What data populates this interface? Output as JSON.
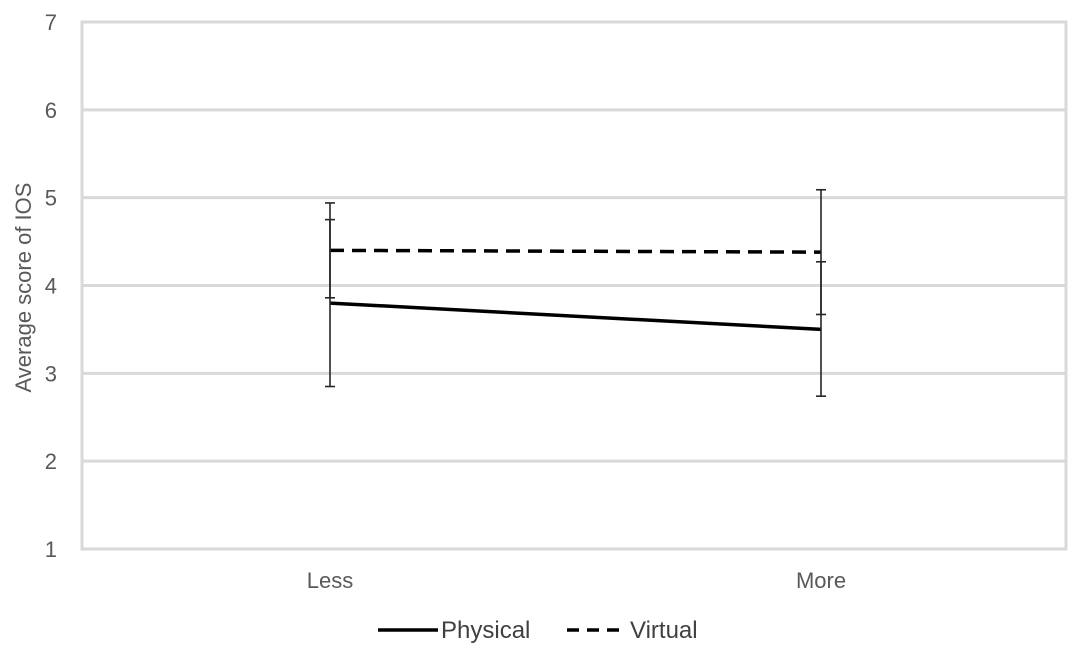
{
  "chart_data": {
    "type": "line",
    "title": "",
    "xlabel": "",
    "ylabel": "Average score of IOS",
    "ylim": [
      1,
      7
    ],
    "yticks": [
      1,
      2,
      3,
      4,
      5,
      6,
      7
    ],
    "categories": [
      "Less",
      "More"
    ],
    "grid": true,
    "legend_position": "bottom",
    "series": [
      {
        "name": "Physical",
        "style": "solid",
        "color": "#000000",
        "values": [
          3.8,
          3.5
        ],
        "error_low": [
          2.85,
          2.74
        ],
        "error_high": [
          4.75,
          4.27
        ]
      },
      {
        "name": "Virtual",
        "style": "dashed",
        "color": "#000000",
        "values": [
          4.4,
          4.38
        ],
        "error_low": [
          3.86,
          3.67
        ],
        "error_high": [
          4.94,
          5.09
        ]
      }
    ]
  }
}
